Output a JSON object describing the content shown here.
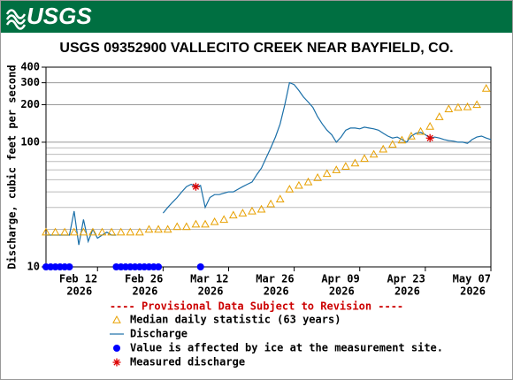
{
  "logo": "USGS",
  "chart_data": {
    "type": "line",
    "title": "USGS 09352900 VALLECITO CREEK NEAR BAYFIELD, CO.",
    "y_label": "Discharge, cubic feet per second",
    "note": "---- Provisional Data Subject to Revision ----",
    "log_y": true,
    "grid": true,
    "xlim": [
      "2026-02-01",
      "2026-05-07"
    ],
    "xticks": [
      {
        "value": "2026-02-12",
        "label": [
          "Feb 12",
          "2026"
        ]
      },
      {
        "value": "2026-02-26",
        "label": [
          "Feb 26",
          "2026"
        ]
      },
      {
        "value": "2026-03-12",
        "label": [
          "Mar 12",
          "2026"
        ]
      },
      {
        "value": "2026-03-26",
        "label": [
          "Mar 26",
          "2026"
        ]
      },
      {
        "value": "2026-04-09",
        "label": [
          "Apr 09",
          "2026"
        ]
      },
      {
        "value": "2026-04-23",
        "label": [
          "Apr 23",
          "2026"
        ]
      },
      {
        "value": "2026-05-07",
        "label": [
          "May 07",
          "2026"
        ]
      }
    ],
    "ylim": [
      10,
      400
    ],
    "yticks": [
      10,
      100,
      200,
      300,
      400
    ],
    "y_minor_ticks": [
      20,
      30,
      40,
      50,
      60,
      70,
      80,
      90
    ],
    "series": [
      {
        "name": "Median daily statistic (63 years)",
        "marker": "triangle",
        "color": "#e8a000",
        "x": [
          "2026-02-01",
          "2026-02-03",
          "2026-02-05",
          "2026-02-07",
          "2026-02-09",
          "2026-02-11",
          "2026-02-13",
          "2026-02-15",
          "2026-02-17",
          "2026-02-19",
          "2026-02-21",
          "2026-02-23",
          "2026-02-25",
          "2026-02-27",
          "2026-03-01",
          "2026-03-03",
          "2026-03-05",
          "2026-03-07",
          "2026-03-09",
          "2026-03-11",
          "2026-03-13",
          "2026-03-15",
          "2026-03-17",
          "2026-03-19",
          "2026-03-21",
          "2026-03-23",
          "2026-03-25",
          "2026-03-27",
          "2026-03-29",
          "2026-03-31",
          "2026-04-02",
          "2026-04-04",
          "2026-04-06",
          "2026-04-08",
          "2026-04-10",
          "2026-04-12",
          "2026-04-14",
          "2026-04-16",
          "2026-04-18",
          "2026-04-20",
          "2026-04-22",
          "2026-04-24",
          "2026-04-26",
          "2026-04-28",
          "2026-04-30",
          "2026-05-02",
          "2026-05-04",
          "2026-05-06"
        ],
        "values": [
          19,
          19,
          19,
          19,
          19,
          19,
          19,
          19,
          19,
          19,
          19,
          20,
          20,
          20,
          21,
          21,
          22,
          22,
          23,
          24,
          26,
          27,
          28,
          29,
          32,
          35,
          42,
          45,
          48,
          52,
          56,
          60,
          64,
          68,
          74,
          80,
          88,
          96,
          104,
          112,
          122,
          134,
          160,
          185,
          190,
          192,
          200,
          270
        ]
      },
      {
        "name": "Discharge",
        "marker": "line",
        "color": "#1a6fa8",
        "x": [
          "2026-02-01",
          "2026-02-02",
          "2026-02-03",
          "2026-02-04",
          "2026-02-05",
          "2026-02-06",
          "2026-02-07",
          "2026-02-08",
          "2026-02-09",
          "2026-02-10",
          "2026-02-11",
          "2026-02-12",
          "2026-02-13",
          "2026-02-14",
          "2026-02-15",
          "2026-02-16",
          "2026-02-17",
          "2026-02-18",
          "2026-02-19",
          "2026-02-20",
          "2026-02-21",
          "2026-02-22",
          "2026-02-23",
          "2026-02-24",
          "2026-02-25",
          "2026-02-26",
          "2026-02-27",
          "2026-02-28",
          "2026-03-01",
          "2026-03-02",
          "2026-03-03",
          "2026-03-04",
          "2026-03-05",
          "2026-03-06",
          "2026-03-07",
          "2026-03-08",
          "2026-03-09",
          "2026-03-10",
          "2026-03-11",
          "2026-03-12",
          "2026-03-13",
          "2026-03-14",
          "2026-03-15",
          "2026-03-16",
          "2026-03-17",
          "2026-03-18",
          "2026-03-19",
          "2026-03-20",
          "2026-03-21",
          "2026-03-22",
          "2026-03-23",
          "2026-03-24",
          "2026-03-25",
          "2026-03-26",
          "2026-03-27",
          "2026-03-28",
          "2026-03-29",
          "2026-03-30",
          "2026-03-31",
          "2026-04-01",
          "2026-04-02",
          "2026-04-03",
          "2026-04-04",
          "2026-04-05",
          "2026-04-06",
          "2026-04-07",
          "2026-04-08",
          "2026-04-09",
          "2026-04-10",
          "2026-04-11",
          "2026-04-12",
          "2026-04-13",
          "2026-04-14",
          "2026-04-15",
          "2026-04-16",
          "2026-04-17",
          "2026-04-18",
          "2026-04-19",
          "2026-04-20",
          "2026-04-21",
          "2026-04-22",
          "2026-04-23",
          "2026-04-24",
          "2026-04-25",
          "2026-04-26",
          "2026-04-27",
          "2026-04-28",
          "2026-04-29",
          "2026-04-30",
          "2026-05-01",
          "2026-05-02",
          "2026-05-03",
          "2026-05-04",
          "2026-05-05",
          "2026-05-06",
          "2026-05-07"
        ],
        "values": [
          18,
          18,
          18,
          18,
          18,
          18,
          28,
          15,
          24,
          16,
          20,
          17,
          18,
          19,
          18,
          18,
          null,
          null,
          null,
          null,
          null,
          null,
          null,
          null,
          null,
          27,
          30,
          33,
          36,
          40,
          44,
          46,
          44,
          45,
          30,
          36,
          38,
          38,
          39,
          40,
          40,
          42,
          44,
          46,
          48,
          55,
          62,
          75,
          90,
          110,
          140,
          200,
          300,
          290,
          260,
          230,
          210,
          190,
          160,
          140,
          125,
          115,
          100,
          110,
          125,
          130,
          130,
          128,
          132,
          130,
          128,
          125,
          118,
          112,
          108,
          110,
          105,
          100,
          112,
          118,
          120,
          115,
          108,
          110,
          108,
          105,
          103,
          102,
          100,
          100,
          98,
          105,
          110,
          112,
          108,
          105
        ]
      },
      {
        "name": "Value is affected by ice at the measurement site.",
        "marker": "dot",
        "color": "#0000ff",
        "x": [
          "2026-02-01",
          "2026-02-02",
          "2026-02-03",
          "2026-02-04",
          "2026-02-05",
          "2026-02-06",
          "2026-02-16",
          "2026-02-17",
          "2026-02-18",
          "2026-02-19",
          "2026-02-20",
          "2026-02-21",
          "2026-02-22",
          "2026-02-23",
          "2026-02-24",
          "2026-02-25",
          "2026-03-06"
        ],
        "values": [
          10,
          10,
          10,
          10,
          10,
          10,
          10,
          10,
          10,
          10,
          10,
          10,
          10,
          10,
          10,
          10,
          10
        ]
      },
      {
        "name": "Measured discharge",
        "marker": "star",
        "color": "#dd0000",
        "x": [
          "2026-03-05",
          "2026-04-24"
        ],
        "values": [
          44,
          108
        ]
      }
    ]
  }
}
